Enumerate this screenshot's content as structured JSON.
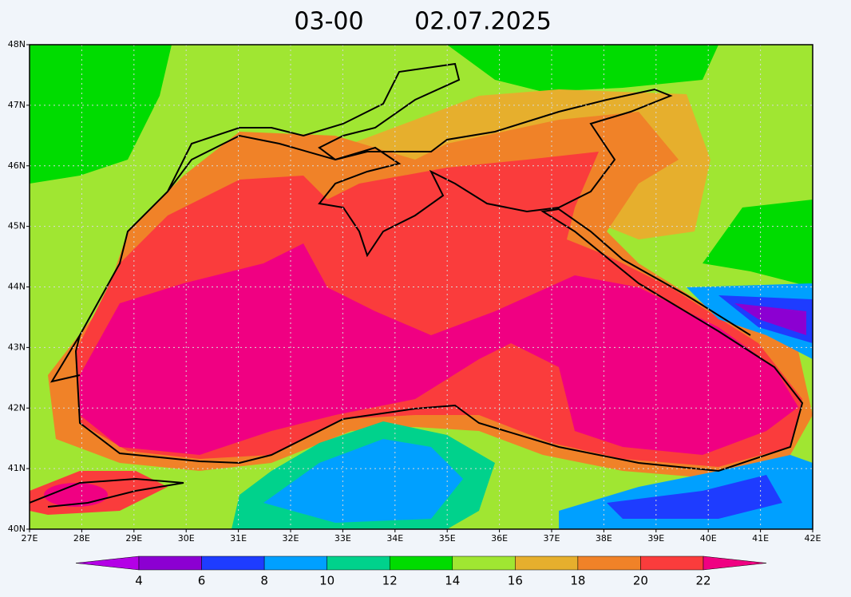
{
  "header": {
    "time": "03-00",
    "date": "02.07.2025"
  },
  "map": {
    "xlim": [
      27,
      42
    ],
    "ylim": [
      40,
      48
    ],
    "xticks": [
      {
        "value": 27,
        "label": "27E"
      },
      {
        "value": 28,
        "label": "28E"
      },
      {
        "value": 29,
        "label": "29E"
      },
      {
        "value": 30,
        "label": "30E"
      },
      {
        "value": 31,
        "label": "31E"
      },
      {
        "value": 32,
        "label": "32E"
      },
      {
        "value": 33,
        "label": "33E"
      },
      {
        "value": 34,
        "label": "34E"
      },
      {
        "value": 35,
        "label": "35E"
      },
      {
        "value": 36,
        "label": "36E"
      },
      {
        "value": 37,
        "label": "37E"
      },
      {
        "value": 38,
        "label": "38E"
      },
      {
        "value": 39,
        "label": "39E"
      },
      {
        "value": 40,
        "label": "40E"
      },
      {
        "value": 41,
        "label": "41E"
      },
      {
        "value": 42,
        "label": "42E"
      }
    ],
    "yticks": [
      {
        "value": 40,
        "label": "40N"
      },
      {
        "value": 41,
        "label": "41N"
      },
      {
        "value": 42,
        "label": "42N"
      },
      {
        "value": 43,
        "label": "43N"
      },
      {
        "value": 44,
        "label": "44N"
      },
      {
        "value": 45,
        "label": "45N"
      },
      {
        "value": 46,
        "label": "46N"
      },
      {
        "value": 47,
        "label": "47N"
      },
      {
        "value": 48,
        "label": "48N"
      }
    ],
    "grid": true
  },
  "colorbar": {
    "levels": [
      4,
      6,
      8,
      10,
      12,
      14,
      16,
      18,
      20,
      22
    ],
    "colors": [
      "#b400e6",
      "#8c00d2",
      "#1e3cff",
      "#00a0ff",
      "#00d28c",
      "#00dc00",
      "#a0e632",
      "#e6af2d",
      "#f08228",
      "#fa3c3c",
      "#f00082"
    ]
  }
}
